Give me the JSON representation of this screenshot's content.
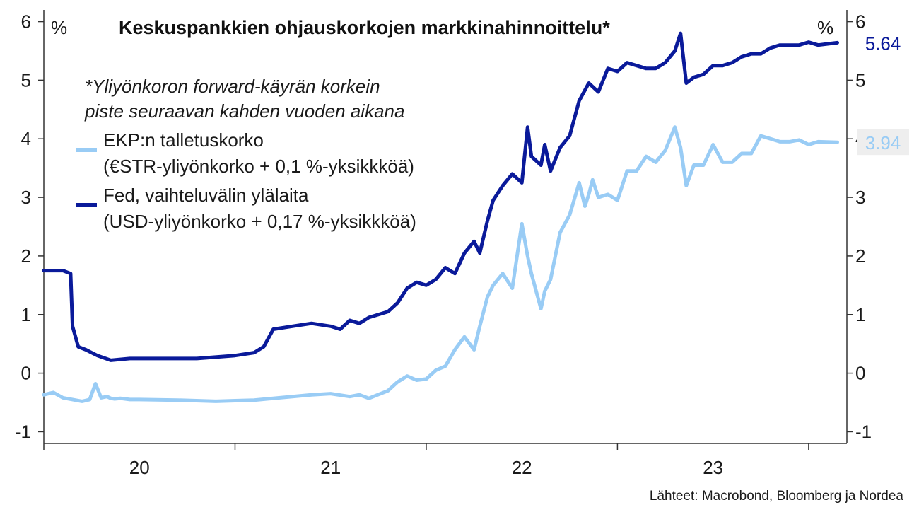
{
  "chart_data": {
    "type": "line",
    "title": "Keskuspankkien ohjauskorkojen markkinahinnoittelu*",
    "note": [
      "*Yliyönkoron forward-käyrän korkein",
      "piste seuraavan kahden vuoden aikana"
    ],
    "unit_left": "%",
    "unit_right": "%",
    "source": "Lähteet: Macrobond, Bloomberg ja Nordea",
    "ylim": [
      -1.2,
      6.2
    ],
    "y_ticks": [
      -1,
      0,
      1,
      2,
      3,
      4,
      5,
      6
    ],
    "xlim": [
      2019.5,
      2023.7
    ],
    "x_ticks": [
      2019.5,
      2020.5,
      2021.5,
      2022.5,
      2023.5
    ],
    "x_labels": [
      {
        "label": "20",
        "x": 2020.0
      },
      {
        "label": "21",
        "x": 2021.0
      },
      {
        "label": "22",
        "x": 2022.0
      },
      {
        "label": "23",
        "x": 2023.0
      }
    ],
    "grid": false,
    "legend": "top-left",
    "series": [
      {
        "name": "EKP:n talletuskorko",
        "name_line2": "(€STR-yliyönkorko + 0,1 %-yksikkköä)",
        "color": "#99ccf5",
        "end_label": "3.94",
        "end_label_bg": "#eeeeee",
        "x": [
          2019.5,
          2019.55,
          2019.6,
          2019.65,
          2019.7,
          2019.74,
          2019.77,
          2019.8,
          2019.83,
          2019.85,
          2019.87,
          2019.9,
          2019.95,
          2020.0,
          2020.2,
          2020.4,
          2020.5,
          2020.6,
          2020.8,
          2020.9,
          2021.0,
          2021.1,
          2021.15,
          2021.2,
          2021.3,
          2021.35,
          2021.4,
          2021.45,
          2021.5,
          2021.55,
          2021.6,
          2021.65,
          2021.7,
          2021.75,
          2021.78,
          2021.82,
          2021.85,
          2021.9,
          2021.95,
          2022.0,
          2022.03,
          2022.05,
          2022.1,
          2022.12,
          2022.15,
          2022.2,
          2022.25,
          2022.3,
          2022.33,
          2022.35,
          2022.37,
          2022.4,
          2022.45,
          2022.5,
          2022.55,
          2022.6,
          2022.65,
          2022.7,
          2022.75,
          2022.8,
          2022.83,
          2022.86,
          2022.9,
          2022.95,
          2023.0,
          2023.05,
          2023.1,
          2023.15,
          2023.2,
          2023.25,
          2023.3,
          2023.35,
          2023.4,
          2023.45,
          2023.5,
          2023.55,
          2023.65
        ],
        "values": [
          -0.37,
          -0.33,
          -0.42,
          -0.45,
          -0.48,
          -0.45,
          -0.18,
          -0.42,
          -0.4,
          -0.43,
          -0.44,
          -0.43,
          -0.45,
          -0.45,
          -0.46,
          -0.48,
          -0.47,
          -0.46,
          -0.4,
          -0.37,
          -0.35,
          -0.4,
          -0.37,
          -0.43,
          -0.3,
          -0.15,
          -0.05,
          -0.12,
          -0.1,
          0.05,
          0.12,
          0.4,
          0.62,
          0.4,
          0.8,
          1.3,
          1.5,
          1.7,
          1.45,
          2.55,
          2.0,
          1.7,
          1.1,
          1.4,
          1.6,
          2.4,
          2.7,
          3.25,
          2.85,
          3.05,
          3.3,
          3.0,
          3.05,
          2.95,
          3.45,
          3.45,
          3.7,
          3.6,
          3.8,
          4.2,
          3.85,
          3.2,
          3.55,
          3.55,
          3.9,
          3.6,
          3.6,
          3.75,
          3.75,
          4.05,
          4.0,
          3.95,
          3.95,
          3.98,
          3.9,
          3.95,
          3.94
        ]
      },
      {
        "name": "Fed, vaihteluvälin ylälaita",
        "name_line2": "(USD-yliyönkorko + 0,17 %-yksikkköä)",
        "color": "#0a1a9a",
        "end_label": "5.64",
        "end_label_bg": "#ffffff",
        "x": [
          2019.5,
          2019.6,
          2019.64,
          2019.65,
          2019.68,
          2019.72,
          2019.78,
          2019.85,
          2019.95,
          2020.1,
          2020.3,
          2020.5,
          2020.6,
          2020.65,
          2020.7,
          2020.8,
          2020.9,
          2021.0,
          2021.05,
          2021.1,
          2021.15,
          2021.2,
          2021.3,
          2021.35,
          2021.4,
          2021.45,
          2021.5,
          2021.55,
          2021.6,
          2021.65,
          2021.7,
          2021.75,
          2021.78,
          2021.82,
          2021.85,
          2021.9,
          2021.95,
          2022.0,
          2022.03,
          2022.05,
          2022.1,
          2022.12,
          2022.15,
          2022.2,
          2022.25,
          2022.3,
          2022.35,
          2022.4,
          2022.45,
          2022.5,
          2022.55,
          2022.6,
          2022.65,
          2022.7,
          2022.75,
          2022.8,
          2022.83,
          2022.86,
          2022.9,
          2022.95,
          2023.0,
          2023.05,
          2023.1,
          2023.15,
          2023.2,
          2023.25,
          2023.3,
          2023.35,
          2023.4,
          2023.45,
          2023.5,
          2023.55,
          2023.6,
          2023.65
        ],
        "values": [
          1.75,
          1.75,
          1.7,
          0.8,
          0.45,
          0.4,
          0.3,
          0.22,
          0.25,
          0.25,
          0.25,
          0.3,
          0.35,
          0.45,
          0.75,
          0.8,
          0.85,
          0.8,
          0.75,
          0.9,
          0.85,
          0.95,
          1.05,
          1.2,
          1.45,
          1.55,
          1.5,
          1.6,
          1.8,
          1.7,
          2.05,
          2.25,
          2.05,
          2.6,
          2.95,
          3.2,
          3.4,
          3.25,
          4.2,
          3.7,
          3.55,
          3.9,
          3.45,
          3.85,
          4.05,
          4.65,
          4.95,
          4.8,
          5.2,
          5.15,
          5.3,
          5.25,
          5.2,
          5.2,
          5.3,
          5.5,
          5.8,
          4.95,
          5.05,
          5.1,
          5.25,
          5.25,
          5.3,
          5.4,
          5.45,
          5.45,
          5.55,
          5.6,
          5.6,
          5.6,
          5.65,
          5.6,
          5.62,
          5.64
        ]
      }
    ]
  }
}
